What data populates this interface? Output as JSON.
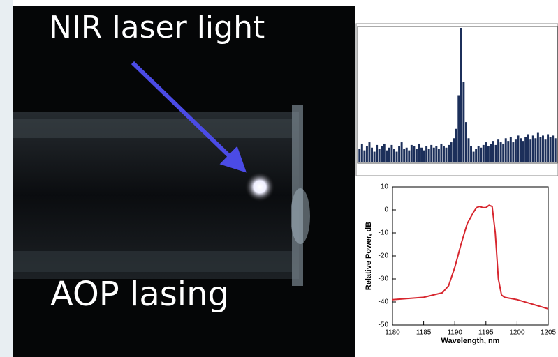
{
  "photo": {
    "top_label": "NIR laser light",
    "bottom_label": "AOP lasing"
  },
  "chart_data": [
    {
      "type": "bar",
      "color": "#1c2f5a",
      "ylim": [
        0,
        1
      ],
      "values": [
        0.1,
        0.14,
        0.09,
        0.12,
        0.15,
        0.11,
        0.08,
        0.13,
        0.1,
        0.12,
        0.14,
        0.09,
        0.11,
        0.13,
        0.1,
        0.08,
        0.12,
        0.15,
        0.1,
        0.11,
        0.09,
        0.13,
        0.12,
        0.1,
        0.14,
        0.11,
        0.09,
        0.12,
        0.1,
        0.13,
        0.11,
        0.12,
        0.1,
        0.14,
        0.12,
        0.11,
        0.13,
        0.15,
        0.18,
        0.25,
        0.5,
        1.0,
        0.6,
        0.3,
        0.18,
        0.12,
        0.08,
        0.1,
        0.12,
        0.11,
        0.13,
        0.15,
        0.12,
        0.14,
        0.16,
        0.13,
        0.17,
        0.15,
        0.14,
        0.18,
        0.16,
        0.19,
        0.15,
        0.17,
        0.2,
        0.18,
        0.16,
        0.19,
        0.21,
        0.17,
        0.2,
        0.18,
        0.22,
        0.19,
        0.2,
        0.17,
        0.21,
        0.19,
        0.2,
        0.18
      ]
    },
    {
      "type": "line",
      "color": "#d7262e",
      "x_label": "Wavelength, nm",
      "y_label": "Relative Power, dB",
      "x": [
        1180,
        1185,
        1188,
        1189,
        1190,
        1191,
        1192,
        1193,
        1193.5,
        1194,
        1194.5,
        1195,
        1195.5,
        1196,
        1196.5,
        1197,
        1197.5,
        1198,
        1200,
        1205
      ],
      "values": [
        -39,
        -38,
        -36,
        -33,
        -25,
        -15,
        -6,
        -1,
        1,
        1.5,
        1,
        1,
        2,
        1.5,
        -10,
        -30,
        -37,
        -38,
        -39,
        -43
      ],
      "xlim": [
        1180,
        1205
      ],
      "xticks": [
        1180,
        1185,
        1190,
        1195,
        1200,
        1205
      ],
      "ylim": [
        -50,
        10
      ],
      "yticks": [
        -50,
        -40,
        -30,
        -20,
        -10,
        0,
        10
      ]
    }
  ]
}
